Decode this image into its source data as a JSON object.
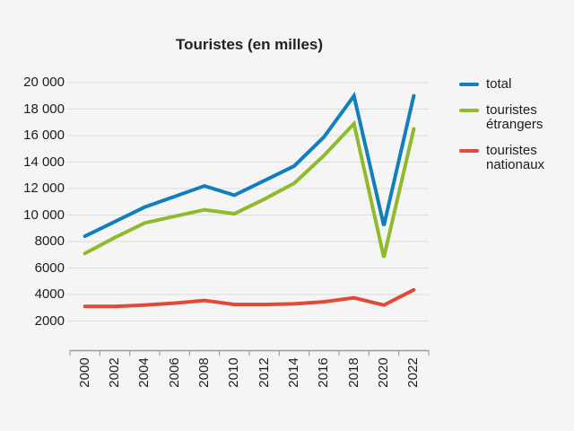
{
  "page": {
    "background": "#f5f5f5"
  },
  "chart_data": {
    "type": "line",
    "title": "Touristes (en milles)",
    "categories": [
      "2000",
      "2002",
      "2004",
      "2006",
      "2008",
      "2010",
      "2012",
      "2014",
      "2016",
      "2018",
      "2020",
      "2022"
    ],
    "y_axis": {
      "min": 0,
      "max": 20000,
      "tick_values": [
        2000,
        4000,
        6000,
        8000,
        10000,
        12000,
        14000,
        16000,
        18000,
        20000
      ],
      "tick_labels": [
        "2000",
        "4000",
        "6000",
        "8000",
        "10 000",
        "12 000",
        "14 000",
        "16 000",
        "18 000",
        "20 000"
      ]
    },
    "grid": true,
    "legend_position": "right",
    "x_tick_labels_rotated": true,
    "series": [
      {
        "name": "total",
        "legend_label": "total",
        "color": "#137ebe",
        "values": [
          8400,
          9500,
          10600,
          11400,
          12200,
          11500,
          12600,
          13700,
          15900,
          19000,
          9200,
          19000
        ]
      },
      {
        "name": "touristes-etrangers",
        "legend_label": "touristes\nétrangers",
        "color": "#8fba2c",
        "values": [
          7100,
          8300,
          9400,
          9900,
          10400,
          10100,
          11200,
          12400,
          14500,
          16900,
          6800,
          16500
        ]
      },
      {
        "name": "touristes-nationaux",
        "legend_label": "touristes\nnationaux",
        "color": "#e04a38",
        "values": [
          3100,
          3100,
          3200,
          3350,
          3550,
          3250,
          3250,
          3300,
          3450,
          3750,
          3200,
          4350
        ]
      }
    ],
    "colors": {
      "background": "#f5f5f5",
      "grid": "#dcdcdc",
      "axis": "#999999",
      "text": "#1c1c1c"
    }
  }
}
